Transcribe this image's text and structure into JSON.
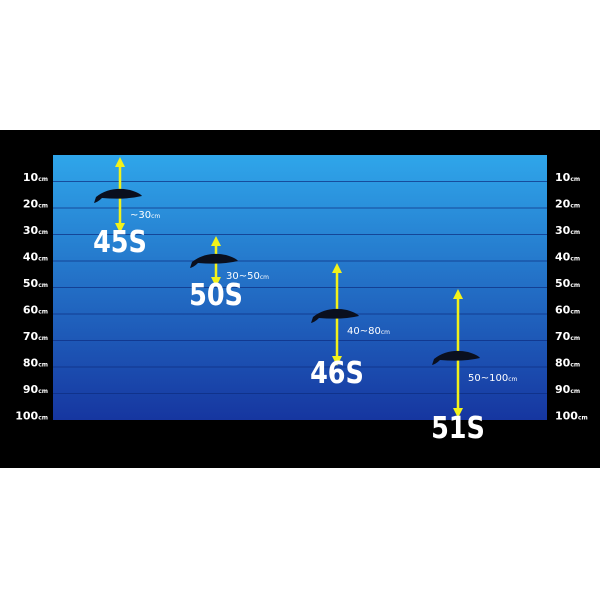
{
  "depth_scale": {
    "labels": [
      "10",
      "20",
      "30",
      "40",
      "50",
      "60",
      "70",
      "80",
      "90",
      "100"
    ],
    "unit": "cm"
  },
  "lures": [
    {
      "name": "45S",
      "range": "~30",
      "unit": "cm"
    },
    {
      "name": "50S",
      "range": "30~50",
      "unit": "cm"
    },
    {
      "name": "46S",
      "range": "40~80",
      "unit": "cm"
    },
    {
      "name": "51S",
      "range": "50~100",
      "unit": "cm"
    }
  ]
}
